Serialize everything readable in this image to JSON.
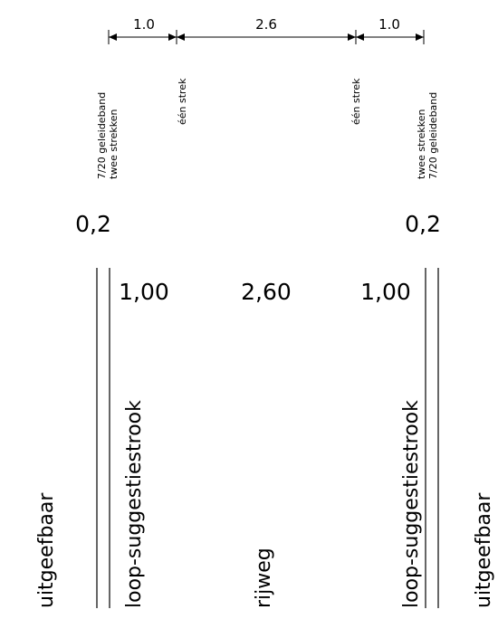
{
  "dimensions": {
    "left": "1.0",
    "middle": "2.6",
    "right": "1.0"
  },
  "markings": {
    "left_outer": [
      "7/20 geleideband",
      "twee strekken"
    ],
    "left_inner": "één strek",
    "right_inner": "één strek",
    "right_outer": [
      "twee strekken",
      "7/20 geleideband"
    ]
  },
  "edge_widths": {
    "left": "0,2",
    "right": "0,2"
  },
  "lane_widths": {
    "left": "1,00",
    "middle": "2,60",
    "right": "1,00"
  },
  "zones": {
    "left_outside": "uitgeefbaar",
    "left_lane": "loop-suggestiestrook",
    "middle": "rijweg",
    "right_lane": "loop-suggestiestrook",
    "right_outside": "uitgeefbaar"
  },
  "colors": {
    "ink": "#000000",
    "background": "#ffffff"
  }
}
